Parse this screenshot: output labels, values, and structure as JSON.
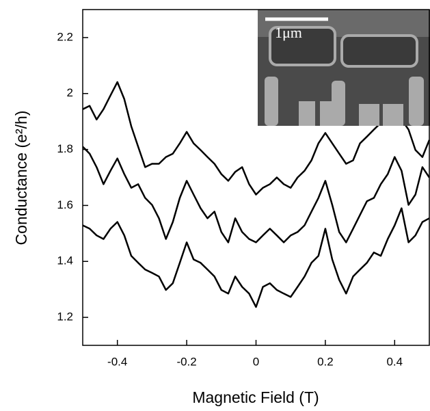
{
  "chart_data": {
    "type": "line",
    "x_label": "Magnetic Field (T)",
    "y_label": "Conductance (e²/h)",
    "annotations": [
      "1μm"
    ],
    "x": [
      -0.5,
      -0.48,
      -0.46,
      -0.44,
      -0.42,
      -0.4,
      -0.38,
      -0.36,
      -0.34,
      -0.32,
      -0.3,
      -0.28,
      -0.26,
      -0.24,
      -0.22,
      -0.2,
      -0.18,
      -0.16,
      -0.14,
      -0.12,
      -0.1,
      -0.08,
      -0.06,
      -0.04,
      -0.02,
      0,
      0.02,
      0.04,
      0.06,
      0.08,
      0.1,
      0.12,
      0.14,
      0.16,
      0.18,
      0.2,
      0.22,
      0.24,
      0.26,
      0.28,
      0.3,
      0.32,
      0.34,
      0.36,
      0.38,
      0.4,
      0.42,
      0.44,
      0.46,
      0.48,
      0.5
    ],
    "series": [
      {
        "color": "#000000",
        "values": [
          1.944,
          1.956,
          1.907,
          1.944,
          1.993,
          2.041,
          1.98,
          1.883,
          1.81,
          1.737,
          1.749,
          1.749,
          1.773,
          1.785,
          1.822,
          1.863,
          1.822,
          1.798,
          1.773,
          1.749,
          1.712,
          1.688,
          1.72,
          1.737,
          1.676,
          1.639,
          1.663,
          1.676,
          1.7,
          1.676,
          1.663,
          1.7,
          1.724,
          1.761,
          1.822,
          1.859,
          1.822,
          1.785,
          1.749,
          1.761,
          1.822,
          1.846,
          1.871,
          1.895,
          1.907,
          1.92,
          1.907,
          1.871,
          1.798,
          1.773,
          1.834
        ]
      },
      {
        "color": "#000000",
        "values": [
          1.81,
          1.785,
          1.737,
          1.676,
          1.724,
          1.768,
          1.712,
          1.663,
          1.676,
          1.627,
          1.602,
          1.554,
          1.48,
          1.541,
          1.627,
          1.688,
          1.639,
          1.59,
          1.554,
          1.578,
          1.505,
          1.468,
          1.554,
          1.505,
          1.48,
          1.468,
          1.493,
          1.517,
          1.493,
          1.468,
          1.493,
          1.505,
          1.529,
          1.578,
          1.627,
          1.688,
          1.602,
          1.505,
          1.468,
          1.517,
          1.566,
          1.615,
          1.627,
          1.676,
          1.712,
          1.773,
          1.724,
          1.602,
          1.639,
          1.737,
          1.7
        ]
      },
      {
        "color": "#000000",
        "values": [
          1.529,
          1.517,
          1.493,
          1.48,
          1.517,
          1.541,
          1.493,
          1.42,
          1.395,
          1.371,
          1.359,
          1.346,
          1.298,
          1.322,
          1.395,
          1.468,
          1.407,
          1.395,
          1.371,
          1.346,
          1.298,
          1.285,
          1.346,
          1.309,
          1.285,
          1.237,
          1.309,
          1.322,
          1.298,
          1.285,
          1.273,
          1.309,
          1.346,
          1.395,
          1.42,
          1.517,
          1.407,
          1.334,
          1.285,
          1.346,
          1.371,
          1.395,
          1.432,
          1.42,
          1.48,
          1.529,
          1.59,
          1.468,
          1.493,
          1.541,
          1.554
        ]
      }
    ],
    "xlim": [
      -0.5,
      0.5
    ],
    "xticks": [
      -0.4,
      -0.2,
      0,
      0.2,
      0.4
    ],
    "ylim": [
      1.1,
      2.3
    ],
    "yticks": [
      1.2,
      1.4,
      1.6,
      1.8,
      2,
      2.2
    ],
    "grid": false
  }
}
